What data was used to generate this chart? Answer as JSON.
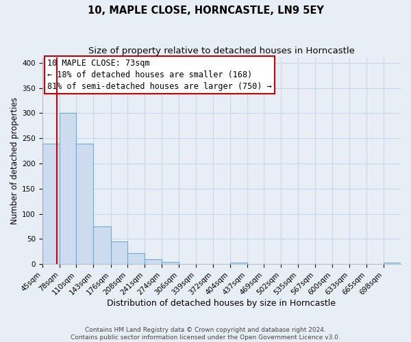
{
  "title": "10, MAPLE CLOSE, HORNCASTLE, LN9 5EY",
  "subtitle": "Size of property relative to detached houses in Horncastle",
  "xlabel": "Distribution of detached houses by size in Horncastle",
  "ylabel": "Number of detached properties",
  "bin_labels": [
    "45sqm",
    "78sqm",
    "110sqm",
    "143sqm",
    "176sqm",
    "208sqm",
    "241sqm",
    "274sqm",
    "306sqm",
    "339sqm",
    "372sqm",
    "404sqm",
    "437sqm",
    "469sqm",
    "502sqm",
    "535sqm",
    "567sqm",
    "600sqm",
    "633sqm",
    "665sqm",
    "698sqm"
  ],
  "bin_edges": [
    45,
    78,
    110,
    143,
    176,
    208,
    241,
    274,
    306,
    339,
    372,
    404,
    437,
    469,
    502,
    535,
    567,
    600,
    633,
    665,
    698,
    731
  ],
  "bar_heights": [
    240,
    300,
    240,
    75,
    45,
    22,
    10,
    5,
    0,
    0,
    0,
    3,
    0,
    0,
    0,
    0,
    0,
    0,
    0,
    0,
    3
  ],
  "bar_color": "#ccdcee",
  "bar_edge_color": "#6aaed6",
  "property_size": 73,
  "red_line_color": "#cc0000",
  "annotation_line1": "10 MAPLE CLOSE: 73sqm",
  "annotation_line2": "← 18% of detached houses are smaller (168)",
  "annotation_line3": "81% of semi-detached houses are larger (750) →",
  "annotation_box_color": "#ffffff",
  "annotation_box_edge_color": "#cc0000",
  "ylim": [
    0,
    410
  ],
  "yticks": [
    0,
    50,
    100,
    150,
    200,
    250,
    300,
    350,
    400
  ],
  "grid_color": "#c8d8e8",
  "background_color": "#e8eef5",
  "footer_text": "Contains HM Land Registry data © Crown copyright and database right 2024.\nContains public sector information licensed under the Open Government Licence v3.0.",
  "title_fontsize": 10.5,
  "subtitle_fontsize": 9.5,
  "xlabel_fontsize": 9,
  "ylabel_fontsize": 8.5,
  "tick_fontsize": 7.5,
  "annotation_fontsize": 8.5,
  "footer_fontsize": 6.5,
  "figwidth": 6.0,
  "figheight": 5.0,
  "dpi": 100
}
